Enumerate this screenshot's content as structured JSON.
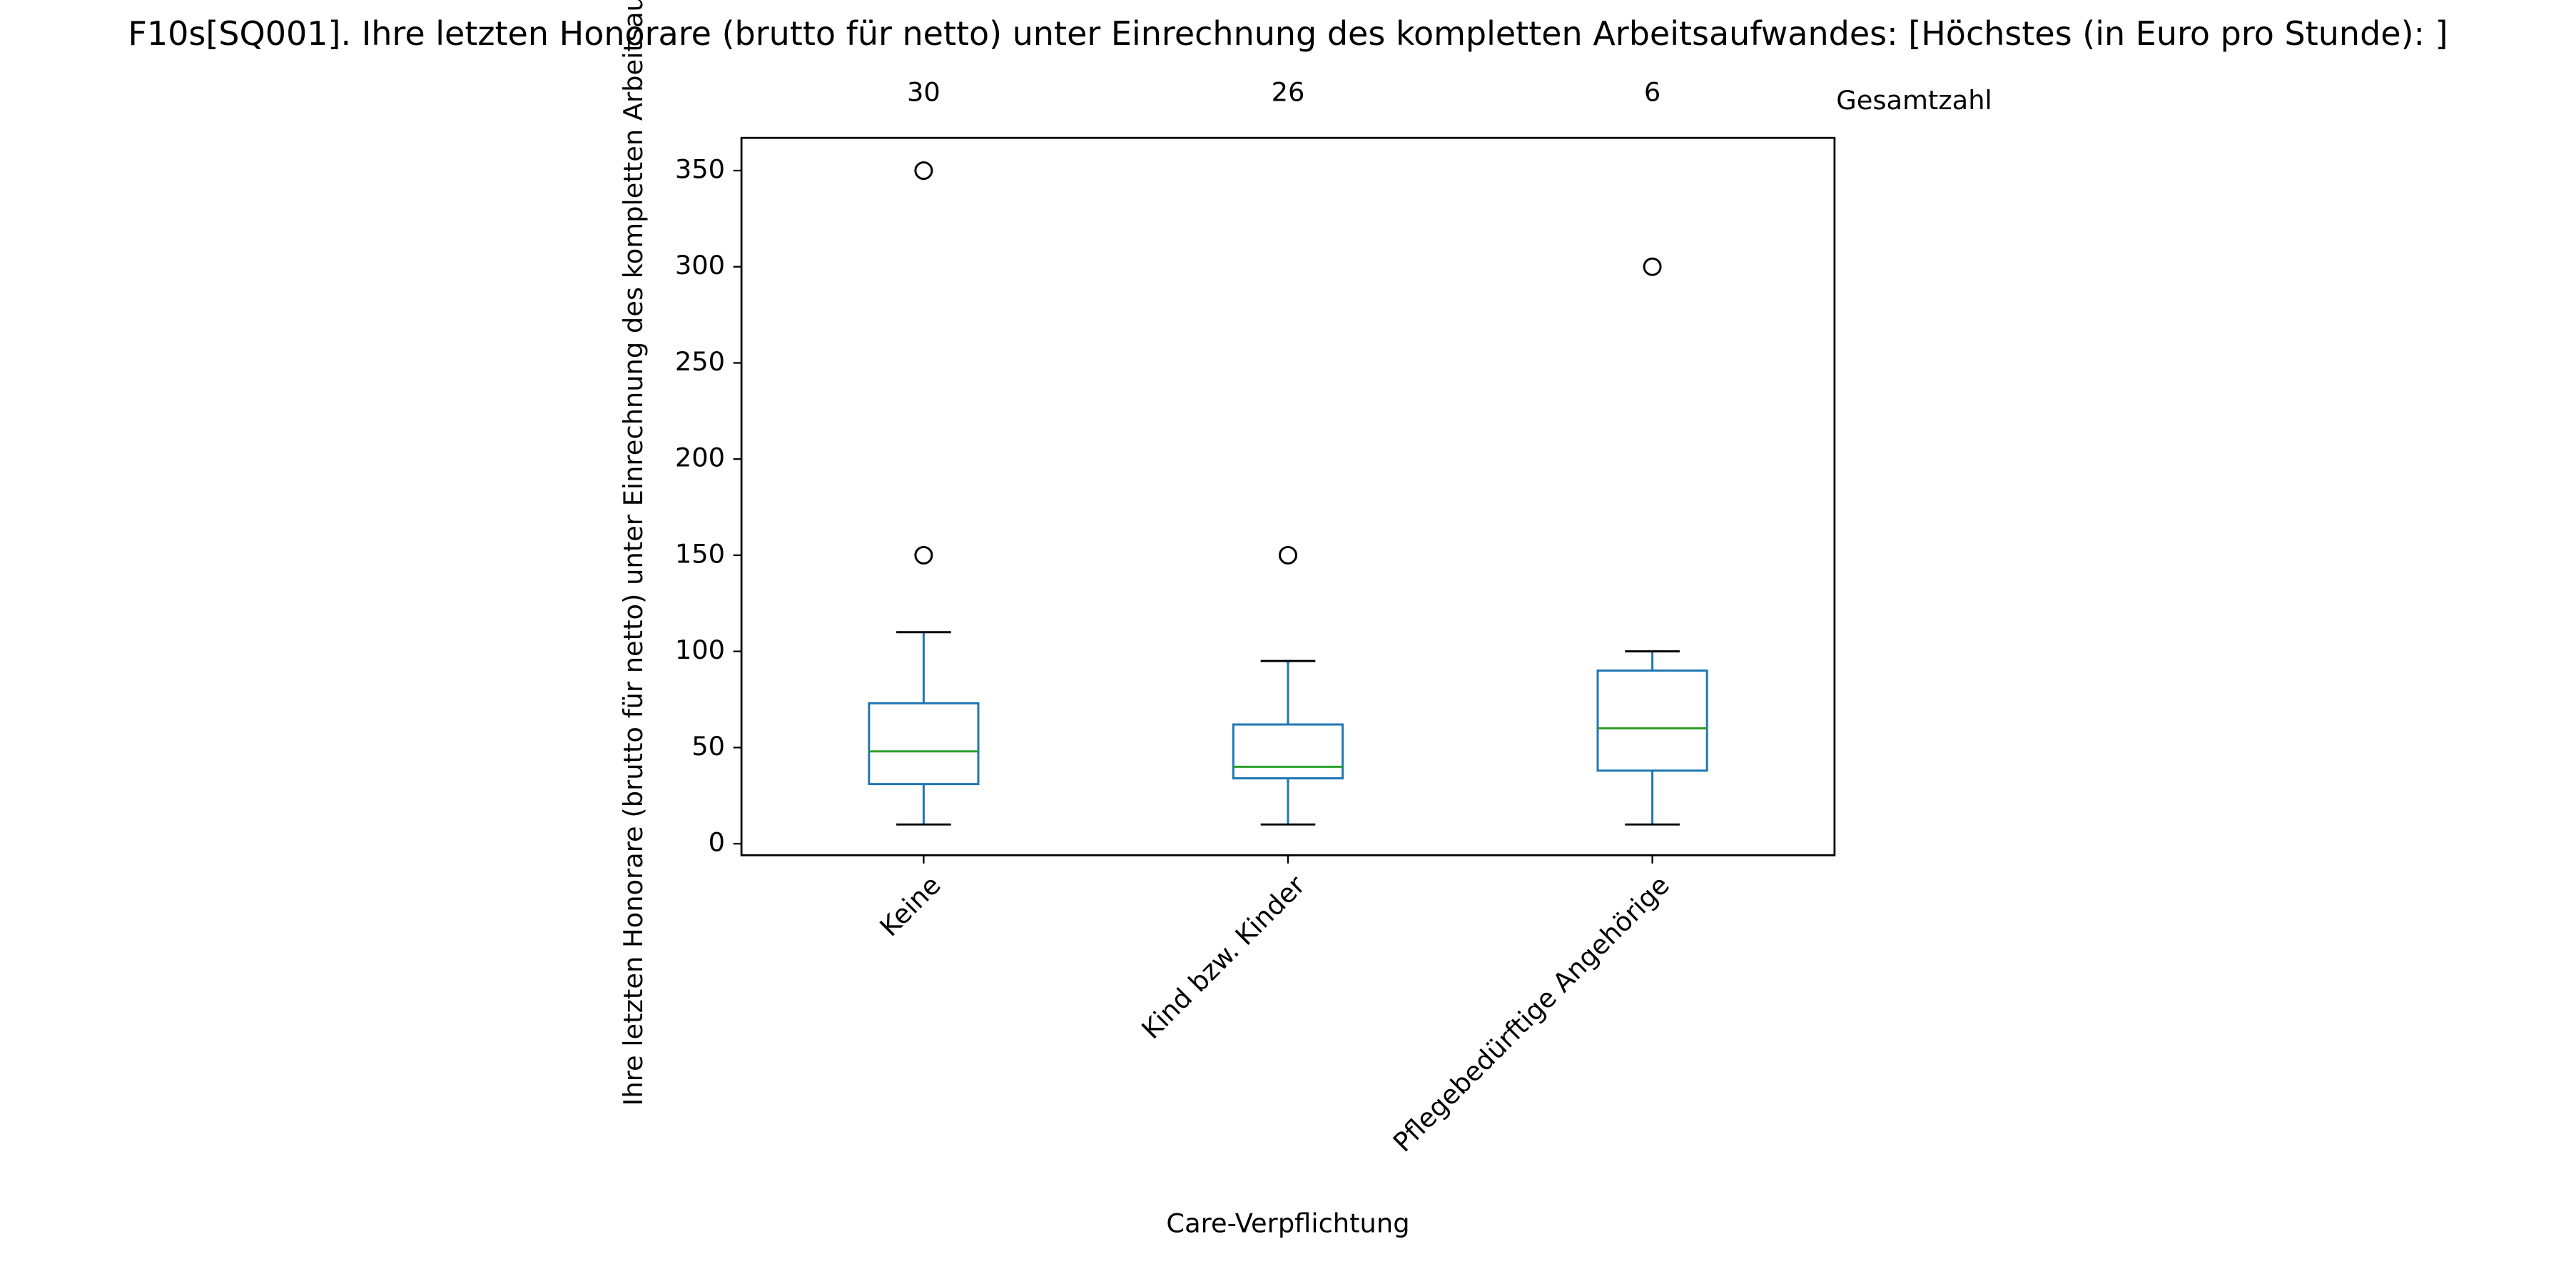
{
  "chart_data": {
    "type": "box",
    "title": "F10s[SQ001]. Ihre letzten Honorare (brutto für netto) unter Einrechnung des kompletten Arbeitsaufwandes:  [Höchstes (in Euro pro Stunde): ]",
    "x_label": "Care-Verpflichtung",
    "y_label": "Ihre letzten Honorare (brutto für netto) unter Einrechnung des kompletten Arbeitsaufwandes",
    "count_label": "Gesamtzahl",
    "categories": [
      "Keine",
      "Kind bzw. Kinder",
      "Pflegebedürftige Angehörige"
    ],
    "counts": [
      30,
      26,
      6
    ],
    "boxes": [
      {
        "whislo": 10,
        "q1": 31,
        "med": 48,
        "q3": 73,
        "whishi": 110,
        "fliers": [
          150,
          350
        ]
      },
      {
        "whislo": 10,
        "q1": 34,
        "med": 40,
        "q3": 62,
        "whishi": 95,
        "fliers": [
          150
        ]
      },
      {
        "whislo": 10,
        "q1": 38,
        "med": 60,
        "q3": 90,
        "whishi": 100,
        "fliers": [
          300
        ]
      }
    ],
    "box_color": "#1f77b4",
    "median_color": "#2ca02c",
    "whisker_color": "#000000",
    "ylim": [
      -6,
      367
    ],
    "yticks": [
      0,
      50,
      100,
      150,
      200,
      250,
      300,
      350
    ]
  }
}
